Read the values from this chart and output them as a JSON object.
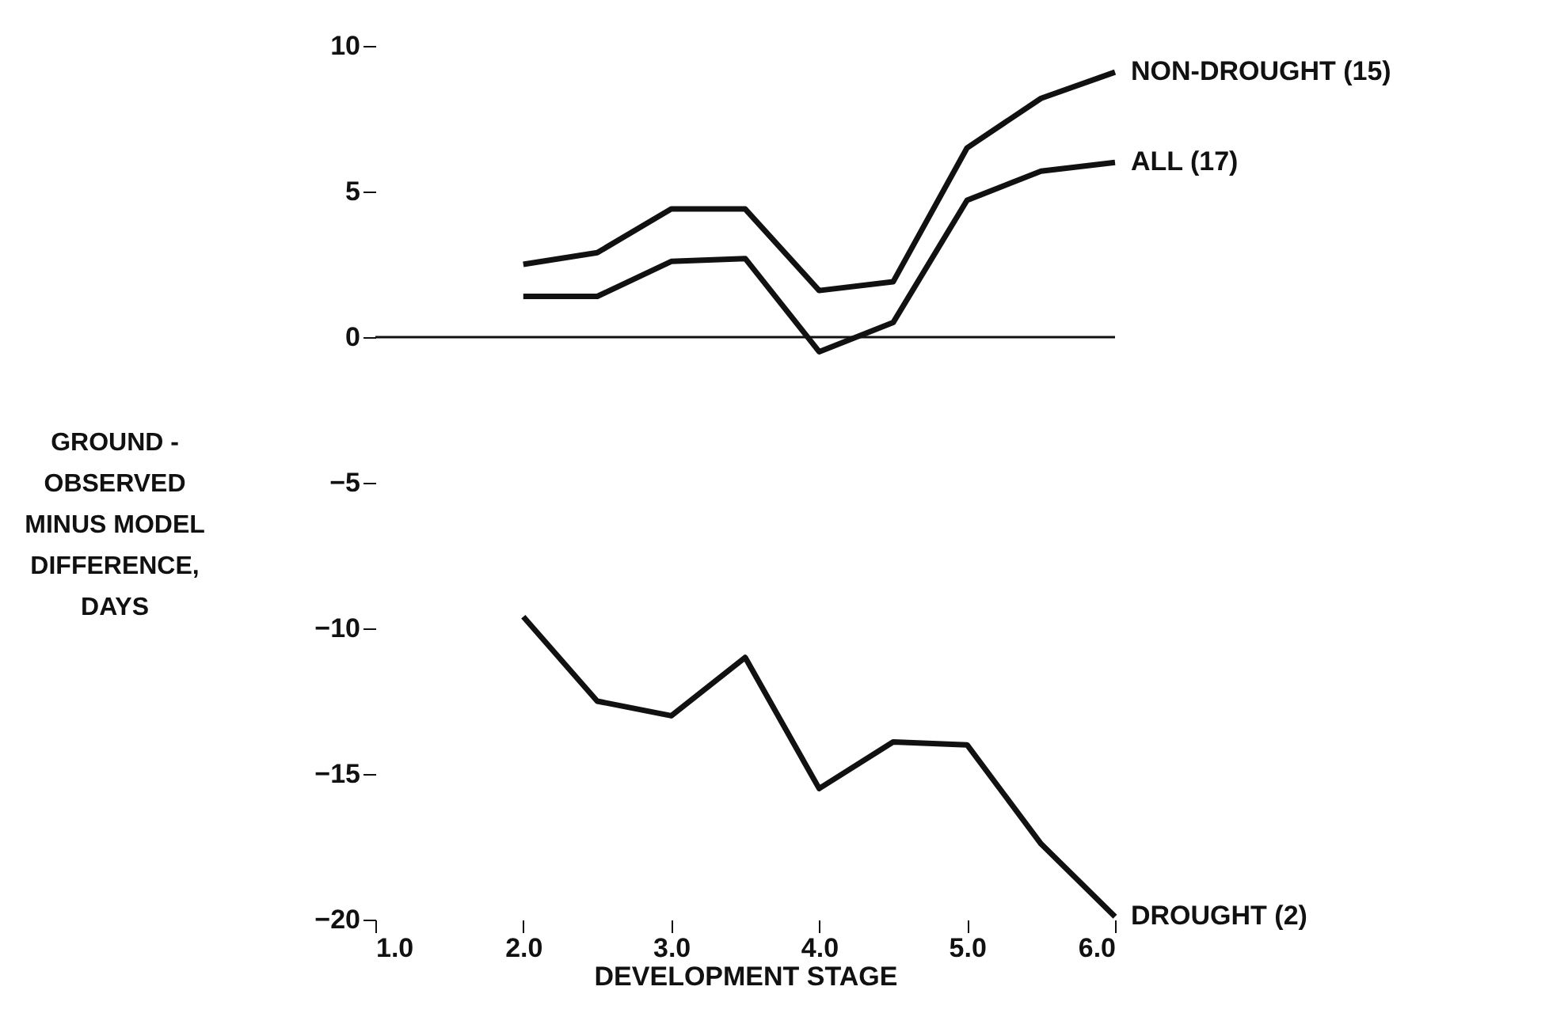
{
  "chart_data": {
    "type": "line",
    "xlabel": "DEVELOPMENT STAGE",
    "ylabel": "GROUND -\nOBSERVED\nMINUS MODEL\nDIFFERENCE,\nDAYS",
    "x": [
      2.0,
      2.5,
      3.0,
      3.5,
      4.0,
      4.5,
      5.0,
      5.5,
      6.0
    ],
    "series": [
      {
        "name": "NON-DROUGHT (15)",
        "color": "#111111",
        "values": [
          2.5,
          2.9,
          4.4,
          4.4,
          1.6,
          1.9,
          6.5,
          8.2,
          9.1
        ]
      },
      {
        "name": "ALL (17)",
        "color": "#111111",
        "values": [
          1.4,
          1.4,
          2.6,
          2.7,
          -0.5,
          0.5,
          4.7,
          5.7,
          6.0
        ]
      },
      {
        "name": "DROUGHT (2)",
        "color": "#111111",
        "values": [
          -9.6,
          -12.5,
          -13.0,
          -11.0,
          -15.5,
          -13.9,
          -14.0,
          -17.4,
          -19.9
        ]
      }
    ],
    "xlim": [
      1.0,
      6.0
    ],
    "xticks": [
      {
        "value": 1,
        "label": "1.0"
      },
      {
        "value": 2,
        "label": "2.0"
      },
      {
        "value": 3,
        "label": "3.0"
      },
      {
        "value": 4,
        "label": "4.0"
      },
      {
        "value": 5,
        "label": "5.0"
      },
      {
        "value": 6,
        "label": "6.0"
      }
    ],
    "ylim": [
      -20,
      10
    ],
    "yticks": [
      -20,
      -15,
      -10,
      -5,
      0,
      5,
      10
    ],
    "ref_lines": [
      {
        "axis": "y",
        "value": 0,
        "color": "#111111"
      }
    ],
    "grid": false,
    "legend": "right",
    "marker": "none",
    "line_style": "solid"
  }
}
